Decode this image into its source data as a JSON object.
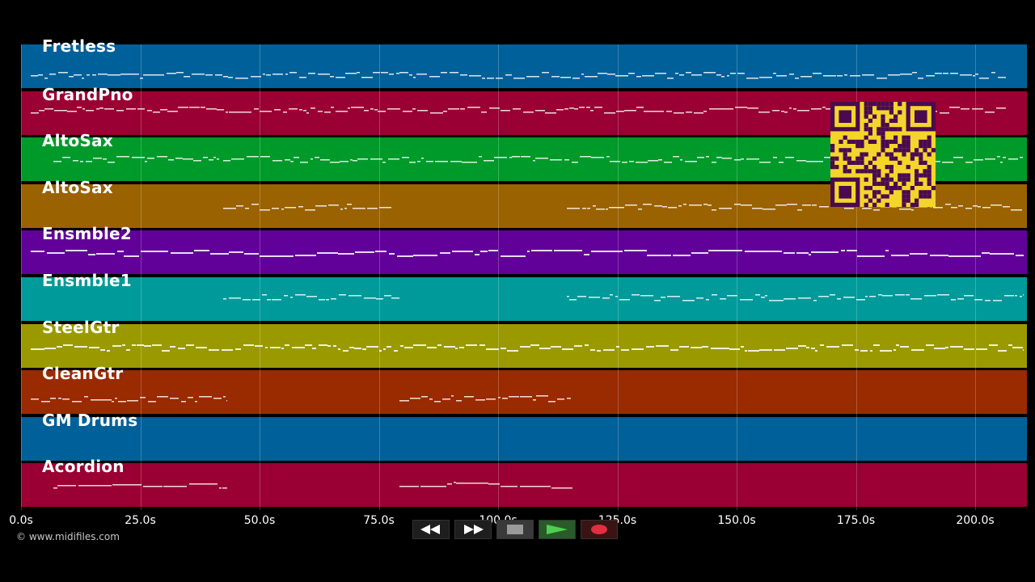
{
  "tracks": [
    {
      "label": "Fretless",
      "color": "#00609a"
    },
    {
      "label": "GrandPno",
      "color": "#9a0033"
    },
    {
      "label": "AltoSax",
      "color": "#009a2a"
    },
    {
      "label": "AltoSax",
      "color": "#9a6200"
    },
    {
      "label": "Ensmble2",
      "color": "#62009a"
    },
    {
      "label": "Ensmble1",
      "color": "#009a9a"
    },
    {
      "label": "SteelGtr",
      "color": "#9a9a00"
    },
    {
      "label": "CleanGtr",
      "color": "#9a2a00"
    },
    {
      "label": "GM Drums",
      "color": "#00609a"
    },
    {
      "label": "Acordion",
      "color": "#9a0033"
    }
  ],
  "time_axis": {
    "ticks": [
      "0.0s",
      "25.0s",
      "50.0s",
      "75.0s",
      "100.0s",
      "125.0s",
      "150.0s",
      "175.0s",
      "200.0s"
    ]
  },
  "footer": {
    "copyright": "© www.midifiles.com"
  },
  "transport": {
    "rewind_icon": "rewind-icon",
    "forward_icon": "fast-forward-icon",
    "stop_icon": "stop-icon",
    "play_icon": "play-icon",
    "record_icon": "record-icon"
  },
  "overlay": {
    "qr_color": "#f4d52a",
    "qr_module_color": "#4a0a50"
  }
}
